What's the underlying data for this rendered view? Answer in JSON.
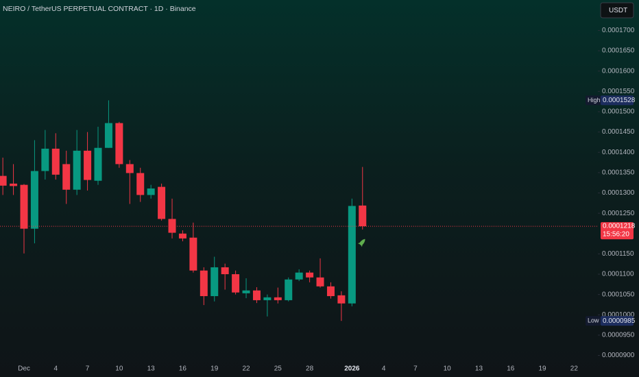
{
  "chart_data": {
    "type": "candlestick",
    "title": "NEIRO / TetherUS PERPETUAL CONTRACT · 1D · Binance",
    "currency": "USDT",
    "categories": [
      null,
      null,
      "Dec",
      null,
      null,
      "4",
      null,
      null,
      "7",
      null,
      null,
      "10",
      null,
      null,
      "13",
      null,
      null,
      "16",
      null,
      null,
      "19",
      null,
      null,
      "22",
      null,
      null,
      "25",
      null,
      null,
      "28",
      null,
      null,
      null,
      "2026",
      null,
      null,
      "4",
      null,
      null,
      "7",
      null,
      null,
      "10",
      null,
      null,
      "13",
      null,
      null,
      "16",
      null,
      null,
      "19",
      null,
      null,
      "22"
    ],
    "open": [
      0.0001342,
      0.0001323,
      0.000132,
      0.0001212,
      0.0001354,
      0.0001409,
      0.0001371,
      0.0001308,
      0.0001404,
      0.000133,
      0.0001411,
      0.0001472,
      0.0001371,
      0.0001349,
      0.0001295,
      0.0001315,
      0.0001236,
      0.00012,
      0.000119,
      0.0001109,
      0.0001046,
      0.0001117,
      0.00011,
      0.0001053,
      0.000106,
      0.0001036,
      0.0001043,
      0.0001036,
      0.0001087,
      0.0001104,
      0.0001092,
      0.000107,
      0.0001048,
      0.0001028,
      0.0001269,
      null,
      null,
      null,
      null,
      null,
      null,
      null,
      null,
      null,
      null,
      null,
      null,
      null,
      null,
      null,
      null,
      null,
      null,
      null,
      null
    ],
    "high": [
      0.0001387,
      0.0001371,
      0.0001322,
      0.000143,
      0.0001455,
      0.0001447,
      0.0001404,
      0.0001455,
      0.000145,
      0.0001463,
      0.0001528,
      0.0001475,
      0.0001381,
      0.0001362,
      0.000132,
      0.0001323,
      0.0001286,
      0.0001208,
      0.0001227,
      0.0001117,
      0.0001143,
      0.0001126,
      0.0001109,
      0.000109,
      0.0001068,
      0.000105,
      0.0001067,
      0.0001092,
      0.0001112,
      0.0001109,
      0.0001139,
      0.000108,
      0.0001058,
      0.0001286,
      0.0001364,
      null,
      null,
      null,
      null,
      null,
      null,
      null,
      null,
      null,
      null,
      null,
      null,
      null,
      null,
      null,
      null,
      null,
      null,
      null,
      null
    ],
    "low": [
      0.0001295,
      0.0001295,
      0.0001151,
      0.0001176,
      0.0001333,
      0.0001333,
      0.0001273,
      0.0001295,
      0.0001306,
      0.000132,
      0.0001411,
      0.0001362,
      0.0001273,
      0.0001278,
      0.0001286,
      0.0001232,
      0.0001188,
      0.0001181,
      0.0001104,
      0.0001024,
      0.0001033,
      0.0001062,
      0.000105,
      0.0001041,
      0.0001029,
      9.96e-05,
      0.0001028,
      0.0001033,
      0.0001083,
      0.000108,
      0.0001067,
      0.000104,
      9.85e-05,
      0.0001021,
      0.000121,
      null,
      null,
      null,
      null,
      null,
      null,
      null,
      null,
      null,
      null,
      null,
      null,
      null,
      null,
      null,
      null,
      null,
      null,
      null,
      null
    ],
    "close": [
      0.0001318,
      0.0001317,
      0.0001212,
      0.0001354,
      0.0001409,
      0.0001345,
      0.0001308,
      0.0001404,
      0.0001332,
      0.0001411,
      0.0001472,
      0.0001371,
      0.0001349,
      0.0001295,
      0.0001311,
      0.0001236,
      0.0001202,
      0.0001188,
      0.0001109,
      0.0001046,
      0.0001117,
      0.00011,
      0.0001055,
      0.000106,
      0.0001036,
      0.0001043,
      0.0001036,
      0.0001087,
      0.0001104,
      0.0001092,
      0.000107,
      0.0001046,
      0.0001028,
      0.0001268,
      0.0001218,
      null,
      null,
      null,
      null,
      null,
      null,
      null,
      null,
      null,
      null,
      null,
      null,
      null,
      null,
      null,
      null,
      null,
      null,
      null,
      null
    ],
    "up_color": "#089981",
    "down_color": "#f23645",
    "ylim": [
      8.8e-05,
      0.0001775
    ],
    "yticks": [
      {
        "value": 9e-05,
        "label": "0.0000900"
      },
      {
        "value": 9.5e-05,
        "label": "0.0000950"
      },
      {
        "value": 0.0001,
        "label": "0.0001000"
      },
      {
        "value": 0.000105,
        "label": "0.0001050"
      },
      {
        "value": 0.00011,
        "label": "0.0001100"
      },
      {
        "value": 0.000115,
        "label": "0.0001150"
      },
      {
        "value": 0.000125,
        "label": "0.0001250"
      },
      {
        "value": 0.00013,
        "label": "0.0001300"
      },
      {
        "value": 0.000135,
        "label": "0.0001350"
      },
      {
        "value": 0.00014,
        "label": "0.0001400"
      },
      {
        "value": 0.000145,
        "label": "0.0001450"
      },
      {
        "value": 0.00015,
        "label": "0.0001500"
      },
      {
        "value": 0.000155,
        "label": "0.0001550"
      },
      {
        "value": 0.00016,
        "label": "0.0001600"
      },
      {
        "value": 0.000165,
        "label": "0.0001650"
      },
      {
        "value": 0.00017,
        "label": "0.0001700"
      }
    ],
    "high_marker": {
      "label": "High",
      "value": 0.0001528
    },
    "low_marker": {
      "label": "Low",
      "value": 9.85e-05
    },
    "last_price": 0.0001218,
    "countdown": "15:56:20"
  }
}
